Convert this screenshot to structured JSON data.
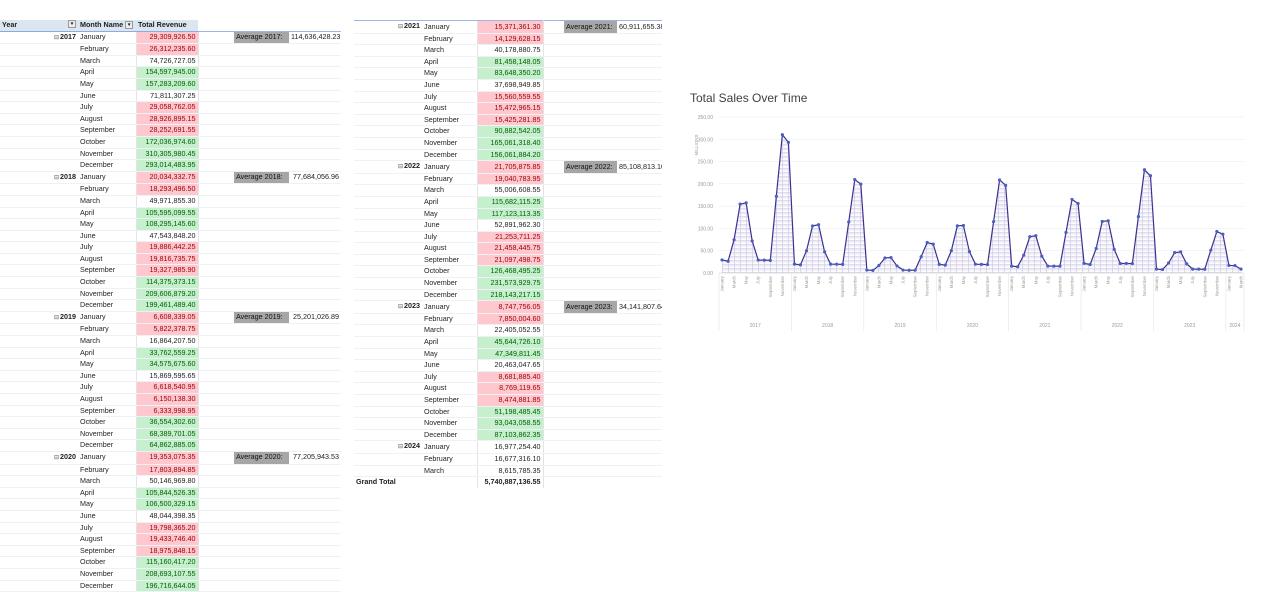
{
  "pivot": {
    "headers": {
      "year": "Year",
      "month": "Month Name",
      "revenue": "Total Revenue"
    },
    "grand_total": {
      "label": "Grand Total",
      "value": "5,740,887,136.55"
    },
    "years": [
      {
        "year": "2017",
        "avg_label": "Average 2017:",
        "avg_value": "114,636,428.23",
        "months": [
          {
            "m": "January",
            "v": "29,309,926.50",
            "c": "red"
          },
          {
            "m": "February",
            "v": "26,312,235.60",
            "c": "red"
          },
          {
            "m": "March",
            "v": "74,726,727.05",
            "c": ""
          },
          {
            "m": "April",
            "v": "154,597,945.00",
            "c": "green"
          },
          {
            "m": "May",
            "v": "157,283,209.60",
            "c": "green"
          },
          {
            "m": "June",
            "v": "71,811,307.25",
            "c": ""
          },
          {
            "m": "July",
            "v": "29,058,762.05",
            "c": "red"
          },
          {
            "m": "August",
            "v": "28,926,895.15",
            "c": "red"
          },
          {
            "m": "September",
            "v": "28,252,691.55",
            "c": "red"
          },
          {
            "m": "October",
            "v": "172,036,974.60",
            "c": "green"
          },
          {
            "m": "November",
            "v": "310,305,980.45",
            "c": "green"
          },
          {
            "m": "December",
            "v": "293,014,483.95",
            "c": "green"
          }
        ]
      },
      {
        "year": "2018",
        "avg_label": "Average 2018:",
        "avg_value": "77,684,056.96",
        "months": [
          {
            "m": "January",
            "v": "20,034,332.75",
            "c": "red"
          },
          {
            "m": "February",
            "v": "18,293,496.50",
            "c": "red"
          },
          {
            "m": "March",
            "v": "49,971,855.30",
            "c": ""
          },
          {
            "m": "April",
            "v": "105,595,099.55",
            "c": "green"
          },
          {
            "m": "May",
            "v": "108,295,145.60",
            "c": "green"
          },
          {
            "m": "June",
            "v": "47,543,848.20",
            "c": ""
          },
          {
            "m": "July",
            "v": "19,886,442.25",
            "c": "red"
          },
          {
            "m": "August",
            "v": "19,816,735.75",
            "c": "red"
          },
          {
            "m": "September",
            "v": "19,327,985.90",
            "c": "red"
          },
          {
            "m": "October",
            "v": "114,375,373.15",
            "c": "green"
          },
          {
            "m": "November",
            "v": "209,606,879.20",
            "c": "green"
          },
          {
            "m": "December",
            "v": "199,461,489.40",
            "c": "green"
          }
        ]
      },
      {
        "year": "2019",
        "avg_label": "Average 2019:",
        "avg_value": "25,201,026.89",
        "months": [
          {
            "m": "January",
            "v": "6,608,339.05",
            "c": "red"
          },
          {
            "m": "February",
            "v": "5,822,378.75",
            "c": "red"
          },
          {
            "m": "March",
            "v": "16,864,207.50",
            "c": ""
          },
          {
            "m": "April",
            "v": "33,762,559.25",
            "c": "green"
          },
          {
            "m": "May",
            "v": "34,575,675.60",
            "c": "green"
          },
          {
            "m": "June",
            "v": "15,869,595.65",
            "c": ""
          },
          {
            "m": "July",
            "v": "6,618,540.95",
            "c": "red"
          },
          {
            "m": "August",
            "v": "6,150,138.30",
            "c": "red"
          },
          {
            "m": "September",
            "v": "6,333,998.95",
            "c": "red"
          },
          {
            "m": "October",
            "v": "36,554,302.60",
            "c": "green"
          },
          {
            "m": "November",
            "v": "68,389,701.05",
            "c": "green"
          },
          {
            "m": "December",
            "v": "64,862,885.05",
            "c": "green"
          }
        ]
      },
      {
        "year": "2020",
        "avg_label": "Average 2020:",
        "avg_value": "77,205,943.53",
        "months": [
          {
            "m": "January",
            "v": "19,353,075.35",
            "c": "red"
          },
          {
            "m": "February",
            "v": "17,803,894.85",
            "c": "red"
          },
          {
            "m": "March",
            "v": "50,146,969.80",
            "c": ""
          },
          {
            "m": "April",
            "v": "105,844,526.35",
            "c": "green"
          },
          {
            "m": "May",
            "v": "106,500,329.15",
            "c": "green"
          },
          {
            "m": "June",
            "v": "48,044,398.35",
            "c": ""
          },
          {
            "m": "July",
            "v": "19,798,365.20",
            "c": "red"
          },
          {
            "m": "August",
            "v": "19,433,746.40",
            "c": "red"
          },
          {
            "m": "September",
            "v": "18,975,848.15",
            "c": "red"
          },
          {
            "m": "October",
            "v": "115,160,417.20",
            "c": "green"
          },
          {
            "m": "November",
            "v": "208,693,107.55",
            "c": "green"
          },
          {
            "m": "December",
            "v": "196,716,644.05",
            "c": "green"
          }
        ]
      },
      {
        "year": "2021",
        "avg_label": "Average 2021:",
        "avg_value": "60,911,655.38",
        "months": [
          {
            "m": "January",
            "v": "15,371,361.30",
            "c": "red"
          },
          {
            "m": "February",
            "v": "14,129,628.15",
            "c": "red"
          },
          {
            "m": "March",
            "v": "40,178,880.75",
            "c": ""
          },
          {
            "m": "April",
            "v": "81,458,148.05",
            "c": "green"
          },
          {
            "m": "May",
            "v": "83,648,350.20",
            "c": "green"
          },
          {
            "m": "June",
            "v": "37,698,949.85",
            "c": ""
          },
          {
            "m": "July",
            "v": "15,560,559.55",
            "c": "red"
          },
          {
            "m": "August",
            "v": "15,472,965.15",
            "c": "red"
          },
          {
            "m": "September",
            "v": "15,425,281.85",
            "c": "red"
          },
          {
            "m": "October",
            "v": "90,882,542.05",
            "c": "green"
          },
          {
            "m": "November",
            "v": "165,061,318.40",
            "c": "green"
          },
          {
            "m": "December",
            "v": "156,061,884.20",
            "c": "green"
          }
        ]
      },
      {
        "year": "2022",
        "avg_label": "Average 2022:",
        "avg_value": "85,108,813.10",
        "months": [
          {
            "m": "January",
            "v": "21,705,875.85",
            "c": "red"
          },
          {
            "m": "February",
            "v": "19,040,783.95",
            "c": "red"
          },
          {
            "m": "March",
            "v": "55,006,608.55",
            "c": ""
          },
          {
            "m": "April",
            "v": "115,682,115.25",
            "c": "green"
          },
          {
            "m": "May",
            "v": "117,123,113.35",
            "c": "green"
          },
          {
            "m": "June",
            "v": "52,891,962.30",
            "c": ""
          },
          {
            "m": "July",
            "v": "21,253,711.25",
            "c": "red"
          },
          {
            "m": "August",
            "v": "21,458,445.75",
            "c": "red"
          },
          {
            "m": "September",
            "v": "21,097,498.75",
            "c": "red"
          },
          {
            "m": "October",
            "v": "126,468,495.25",
            "c": "green"
          },
          {
            "m": "November",
            "v": "231,573,929.75",
            "c": "green"
          },
          {
            "m": "December",
            "v": "218,143,217.15",
            "c": "green"
          }
        ]
      },
      {
        "year": "2023",
        "avg_label": "Average 2023:",
        "avg_value": "34,141,807.64",
        "months": [
          {
            "m": "January",
            "v": "8,747,756.05",
            "c": "red"
          },
          {
            "m": "February",
            "v": "7,850,004.60",
            "c": "red"
          },
          {
            "m": "March",
            "v": "22,405,052.55",
            "c": ""
          },
          {
            "m": "April",
            "v": "45,644,726.10",
            "c": "green"
          },
          {
            "m": "May",
            "v": "47,349,811.45",
            "c": "green"
          },
          {
            "m": "June",
            "v": "20,463,047.65",
            "c": ""
          },
          {
            "m": "July",
            "v": "8,681,885.40",
            "c": "red"
          },
          {
            "m": "August",
            "v": "8,769,119.65",
            "c": "red"
          },
          {
            "m": "September",
            "v": "8,474,881.85",
            "c": "red"
          },
          {
            "m": "October",
            "v": "51,198,485.45",
            "c": "green"
          },
          {
            "m": "November",
            "v": "93,043,058.55",
            "c": "green"
          },
          {
            "m": "December",
            "v": "87,103,862.35",
            "c": "green"
          }
        ]
      },
      {
        "year": "2024",
        "avg_label": "",
        "avg_value": "",
        "months": [
          {
            "m": "January",
            "v": "16,977,254.40",
            "c": ""
          },
          {
            "m": "February",
            "v": "16,677,316.10",
            "c": ""
          },
          {
            "m": "March",
            "v": "8,615,785.35",
            "c": ""
          }
        ]
      }
    ]
  },
  "chart_data": {
    "type": "area",
    "title": "Total Sales Over Time",
    "ylabel": "MILLIONS",
    "ylim": [
      0,
      350
    ],
    "yticks": [
      "0.00",
      "50.00",
      "100.00",
      "150.00",
      "200.00",
      "250.00",
      "300.00",
      "350.00"
    ],
    "year_groups": [
      "2017",
      "2018",
      "2019",
      "2020",
      "2021",
      "2022",
      "2023",
      "2024"
    ],
    "visible_month_ticks": [
      "January",
      "March",
      "May",
      "July",
      "September",
      "November"
    ],
    "colors": {
      "line": "#3f2f8f",
      "marker": "#4a5fbf",
      "fill_top": "#b9b4dc"
    },
    "series": [
      {
        "values": [
          29.31,
          26.31,
          74.73,
          154.6,
          157.28,
          71.81,
          29.06,
          28.93,
          28.25,
          172.04,
          310.31,
          293.01,
          20.03,
          18.29,
          49.97,
          105.6,
          108.3,
          47.54,
          19.89,
          19.82,
          19.33,
          114.38,
          209.61,
          199.46,
          6.61,
          5.82,
          16.86,
          33.76,
          34.58,
          15.87,
          6.62,
          6.15,
          6.33,
          36.55,
          68.39,
          64.86,
          19.35,
          17.8,
          50.15,
          105.84,
          106.5,
          48.04,
          19.8,
          19.43,
          18.98,
          115.16,
          208.69,
          196.72,
          15.37,
          14.13,
          40.18,
          81.46,
          83.65,
          37.7,
          15.56,
          15.47,
          15.43,
          90.88,
          165.06,
          156.06,
          21.71,
          19.04,
          55.01,
          115.68,
          117.12,
          52.89,
          21.25,
          21.46,
          21.1,
          126.47,
          231.57,
          218.14,
          8.75,
          7.85,
          22.41,
          45.64,
          47.35,
          20.46,
          8.68,
          8.77,
          8.47,
          51.2,
          93.04,
          87.1,
          16.98,
          16.68,
          8.62
        ]
      }
    ]
  }
}
